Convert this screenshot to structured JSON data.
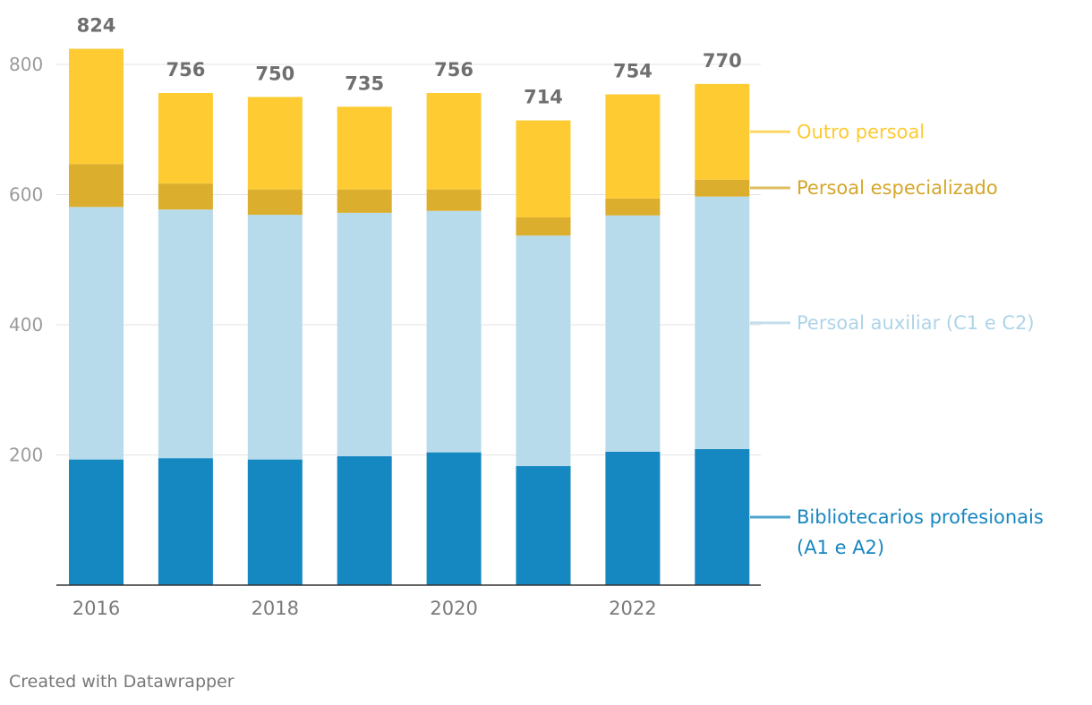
{
  "chart_data": {
    "type": "bar",
    "stacked": true,
    "categories": [
      "2016",
      "2017",
      "2018",
      "2019",
      "2020",
      "2021",
      "2022",
      "2023"
    ],
    "x_tick_labels": [
      "2016",
      "",
      "2018",
      "",
      "2020",
      "",
      "2022",
      ""
    ],
    "totals": [
      "824",
      "756",
      "750",
      "735",
      "756",
      "714",
      "754",
      "770"
    ],
    "series": [
      {
        "name": "Bibliotecarios profesionais (A1 e A2)",
        "label_lines": [
          "Bibliotecarios profesionais",
          "(A1 e A2)"
        ],
        "color": "#1588c2",
        "label_color": "#1786c0",
        "values": [
          193,
          195,
          193,
          198,
          204,
          183,
          205,
          209
        ]
      },
      {
        "name": "Persoal auxiliar (C1 e C2)",
        "label_lines": [
          "Persoal auxiliar (C1 e C2)"
        ],
        "color": "#b8dbec",
        "label_color": "#aed4e8",
        "values": [
          388,
          382,
          376,
          374,
          371,
          354,
          363,
          388
        ]
      },
      {
        "name": "Persoal especializado",
        "label_lines": [
          "Persoal especializado"
        ],
        "color": "#dcae2d",
        "label_color": "#d4a72a",
        "values": [
          66,
          40,
          39,
          36,
          33,
          28,
          26,
          26
        ]
      },
      {
        "name": "Outro persoal",
        "label_lines": [
          "Outro persoal"
        ],
        "color": "#fecb33",
        "label_color": "#fdca33",
        "values": [
          177,
          139,
          142,
          127,
          148,
          149,
          160,
          147
        ]
      }
    ],
    "y_ticks": [
      200,
      400,
      600,
      800
    ],
    "ylim": [
      0,
      824
    ],
    "title": "",
    "xlabel": "",
    "ylabel": "",
    "grid": true,
    "legend": "right"
  },
  "footer": {
    "credit": "Created with Datawrapper"
  }
}
